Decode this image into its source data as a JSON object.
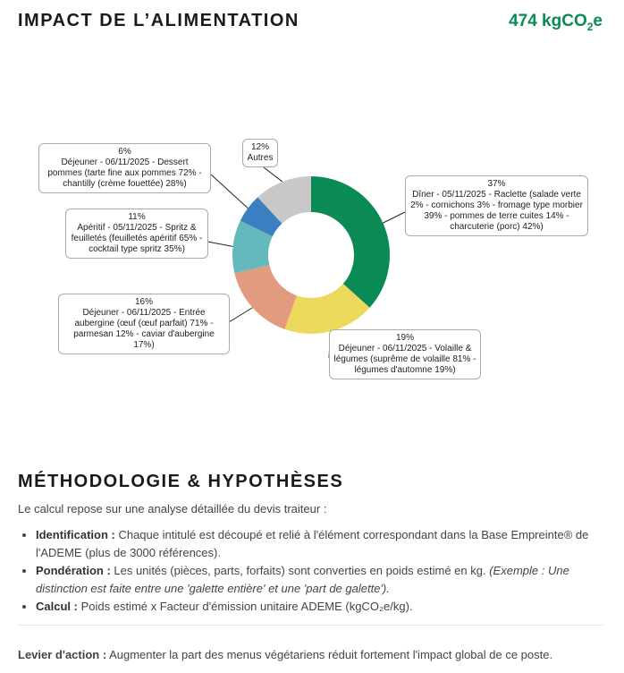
{
  "header": {
    "title": "IMPACT DE L’ALIMENTATION",
    "total_value": "474 kgCO",
    "total_sub": "2",
    "total_suffix": "e"
  },
  "chart_data": {
    "type": "pie",
    "donut": true,
    "slices": [
      {
        "percent": 37,
        "label": "37%",
        "description": "Dîner - 05/11/2025 - Raclette (salade verte 2% - cornichons 3% - fromage type morbier 39% - pommes de terre cuites 14% - charcuterie (porc) 42%)",
        "color": "#0a8a55"
      },
      {
        "percent": 19,
        "label": "19%",
        "description": "Déjeuner - 06/11/2025 - Volaille & légumes (suprême de volaille 81% - légumes d'automne 19%)",
        "color": "#ecd85a"
      },
      {
        "percent": 16,
        "label": "16%",
        "description": "Déjeuner - 06/11/2025 - Entrée aubergine (œuf (œuf parfait) 71% - parmesan 12% - caviar d'aubergine 17%)",
        "color": "#e39b80"
      },
      {
        "percent": 11,
        "label": "11%",
        "description": "Apéritif - 05/11/2025 - Spritz & feuilletés (feuilletés apéritif 65% - cocktail type spritz 35%)",
        "color": "#64b9bc"
      },
      {
        "percent": 6,
        "label": "6%",
        "description": "Déjeuner - 06/11/2025 - Dessert pommes (tarte fine aux pommes 72% - chantilly (crème fouettée) 28%)",
        "color": "#3a7fbf"
      },
      {
        "percent": 12,
        "label": "12%",
        "description": "Autres",
        "color": "#c8c8c8"
      }
    ]
  },
  "methodology": {
    "title": "MÉTHODOLOGIE & HYPOTHÈSES",
    "intro": "Le calcul repose sur une analyse détaillée du devis traiteur :",
    "items": [
      {
        "label": "Identification :",
        "text": " Chaque intitulé est découpé et relié à l'élément correspondant dans la Base Empreinte® de l'ADEME (plus de 3000 références).",
        "italic": ""
      },
      {
        "label": "Pondération :",
        "text": " Les unités (pièces, parts, forfaits) sont converties en poids estimé en kg. ",
        "italic": "(Exemple : Une distinction est faite entre une 'galette entière' et une 'part de galette')."
      },
      {
        "label": "Calcul :",
        "text": " Poids estimé x Facteur d'émission unitaire ADEME (kgCO₂e/kg).",
        "italic": ""
      }
    ],
    "lever_label": "Levier d'action :",
    "lever_text": " Augmenter la part des menus végétariens réduit fortement l'impact global de ce poste."
  }
}
